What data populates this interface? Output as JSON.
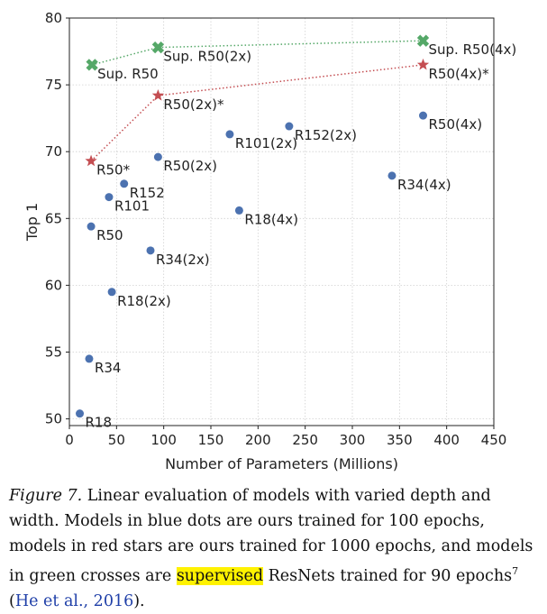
{
  "chart_data": {
    "type": "scatter",
    "xlabel": "Number of Parameters (Millions)",
    "ylabel": "Top 1",
    "xlim": [
      0,
      450
    ],
    "ylim": [
      49.5,
      80
    ],
    "x_ticks": [
      0,
      50,
      100,
      150,
      200,
      250,
      300,
      350,
      400,
      450
    ],
    "y_ticks": [
      50,
      55,
      60,
      65,
      70,
      75,
      80
    ],
    "grid": true,
    "series": [
      {
        "color": "#4c72b0",
        "marker": "dot",
        "connected": false,
        "points": [
          {
            "label": "R18",
            "x": 11,
            "y": 50.4
          },
          {
            "label": "R34",
            "x": 21,
            "y": 54.5
          },
          {
            "label": "R18(2x)",
            "x": 45,
            "y": 59.5
          },
          {
            "label": "R34(2x)",
            "x": 86,
            "y": 62.6
          },
          {
            "label": "R50",
            "x": 23,
            "y": 64.4
          },
          {
            "label": "R101",
            "x": 42,
            "y": 66.6
          },
          {
            "label": "R152",
            "x": 58,
            "y": 67.6
          },
          {
            "label": "R50(2x)",
            "x": 94,
            "y": 69.6
          },
          {
            "label": "R18(4x)",
            "x": 180,
            "y": 65.6
          },
          {
            "label": "R101(2x)",
            "x": 170,
            "y": 71.3
          },
          {
            "label": "R152(2x)",
            "x": 233,
            "y": 71.9
          },
          {
            "label": "R34(4x)",
            "x": 342,
            "y": 68.2
          },
          {
            "label": "R50(4x)",
            "x": 375,
            "y": 72.7
          }
        ]
      },
      {
        "color": "#c44e52",
        "marker": "star",
        "connected": true,
        "points": [
          {
            "label": "R50*",
            "x": 23,
            "y": 69.3
          },
          {
            "label": "R50(2x)*",
            "x": 94,
            "y": 74.2
          },
          {
            "label": "R50(4x)*",
            "x": 375,
            "y": 76.5
          }
        ]
      },
      {
        "color": "#55a868",
        "marker": "cross",
        "connected": true,
        "points": [
          {
            "label": "Sup. R50",
            "x": 24,
            "y": 76.5
          },
          {
            "label": "Sup. R50(2x)",
            "x": 94,
            "y": 77.8
          },
          {
            "label": "Sup. R50(4x)",
            "x": 375,
            "y": 78.3
          }
        ]
      }
    ]
  },
  "caption": {
    "fig_label": "Figure 7.",
    "part1": " Linear evaluation of models with varied depth and width. Models in blue dots are ours trained for 100 epochs, models in red stars are ours trained for 1000 epochs, and models in green crosses are ",
    "highlight": "supervised",
    "part2": " ResNets trained for 90 epochs",
    "footnote": "7",
    "part3": " (",
    "citation": "He et al., 2016",
    "part4": ")."
  }
}
